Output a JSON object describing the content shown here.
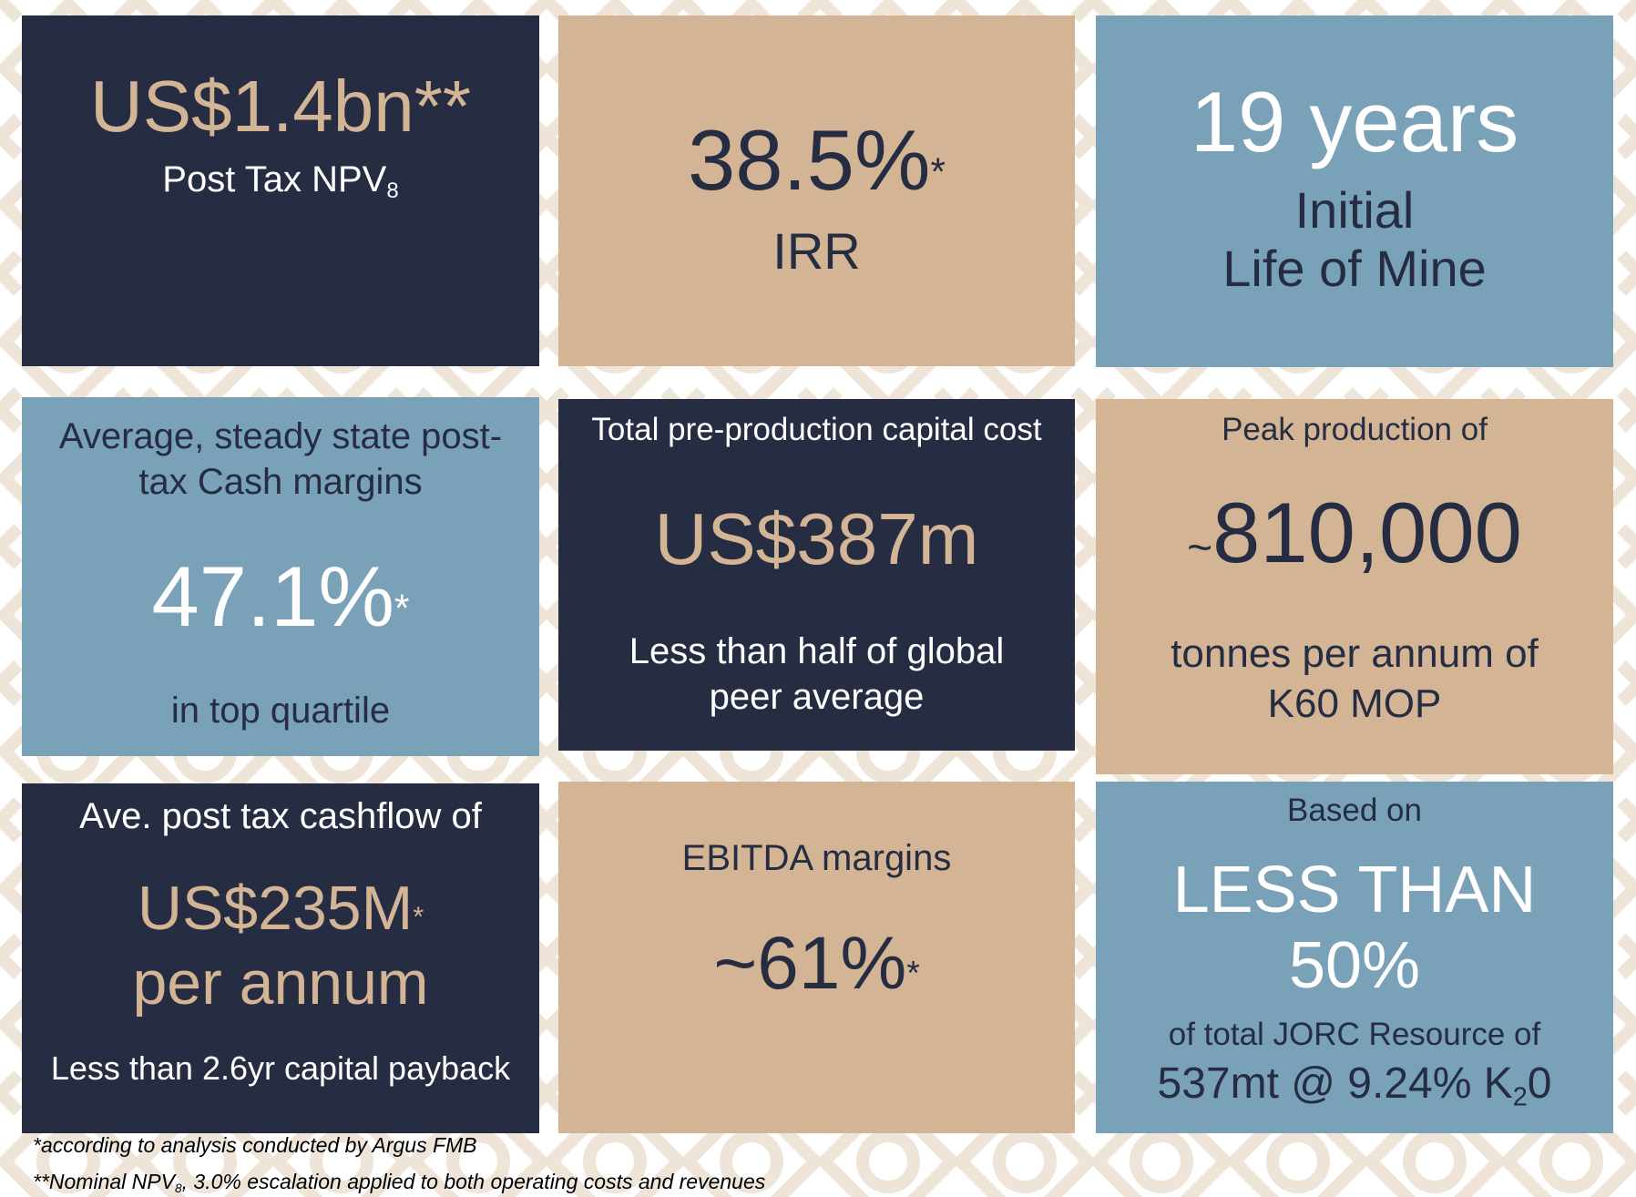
{
  "colors": {
    "navy": "#262d42",
    "tan": "#d3b596",
    "blue": "#79a1b8",
    "white": "#ffffff"
  },
  "tiles": {
    "npv": {
      "value": "US$1.4bn**",
      "label": "Post Tax NPV",
      "label_sub": "8"
    },
    "irr": {
      "value": "38.5%",
      "asterisk": "*",
      "label": "IRR"
    },
    "life": {
      "value": "19 years",
      "line1": "Initial",
      "line2": "Life of Mine"
    },
    "margins": {
      "line1": "Average, steady state post-",
      "line2": "tax Cash margins",
      "value": "47.1%",
      "asterisk": "*",
      "note": "in top quartile"
    },
    "capex": {
      "heading": "Total pre-production capital cost",
      "value": "US$387m",
      "line1": "Less than half of global",
      "line2": "peer average"
    },
    "production": {
      "heading": "Peak production of",
      "prefix": "~",
      "value": "810,000",
      "line1": "tonnes per annum of",
      "line2": "K60 MOP"
    },
    "cashflow": {
      "heading": "Ave. post tax cashflow of",
      "value": "US$235M",
      "asterisk": "*",
      "line2": "per annum",
      "note": "Less than 2.6yr capital payback"
    },
    "ebitda": {
      "heading": "EBITDA margins",
      "value": "~61%",
      "asterisk": "*"
    },
    "resource": {
      "heading": "Based on",
      "line1": "LESS THAN",
      "line2": "50%",
      "line3": "of total JORC Resource of",
      "line4_pre": "537mt @ 9.24% K",
      "line4_sub": "2",
      "line4_post": "0"
    }
  },
  "footnotes": {
    "note1": "*according to analysis conducted by Argus FMB",
    "note2_pre": "**Nominal NPV",
    "note2_sub": "8",
    "note2_post": ", 3.0% escalation applied to both operating costs and revenues"
  }
}
